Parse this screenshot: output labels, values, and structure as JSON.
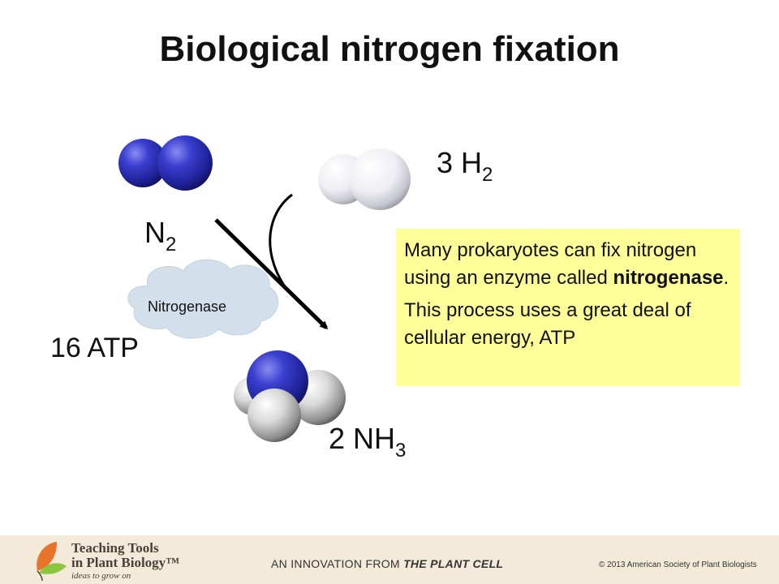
{
  "slide": {
    "title": "Biological nitrogen fixation"
  },
  "molecules": {
    "h2_coef": "3 H",
    "h2_sub": "2",
    "n2_main": "N",
    "n2_sub": "2",
    "nh3_coef": "2 NH",
    "nh3_sub": "3",
    "atp": "16 ATP"
  },
  "enzyme": {
    "label": "Nitrogenase"
  },
  "note": {
    "line1_prefix": "Many prokaryotes can fix nitrogen using an enzyme called ",
    "line1_bold": "nitrogenase",
    "line1_suffix": ".",
    "line2": "This process uses a great deal of cellular energy, ATP"
  },
  "colors": {
    "note_bg": "#ffff99",
    "nitrogen": "#2b2fb8",
    "hydrogen": "#f2f2f2",
    "cloud": "#d3dfea",
    "footer_bg": "#f3ead9"
  },
  "footer": {
    "brand_line1": "Teaching Tools",
    "brand_line2": "in Plant Biology™",
    "tagline": "ideas to grow on",
    "innovation_prefix": "AN INNOVATION FROM ",
    "innovation_bold": "THE PLANT CELL",
    "copyright": "©  2013 American Society of Plant Biologists",
    "logo_icon": "leaf-logo-icon"
  }
}
